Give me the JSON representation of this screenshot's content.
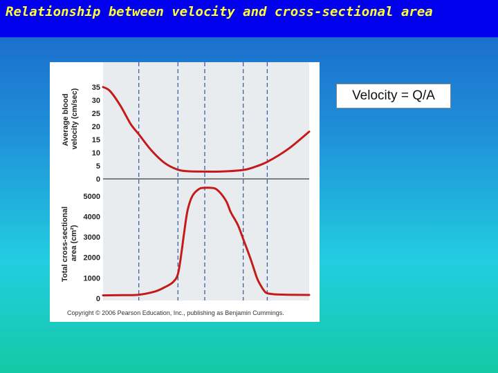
{
  "slide": {
    "title": "Relationship between velocity and cross-sectional area",
    "formula": "Velocity = Q/A"
  },
  "colors": {
    "title_bg": "#0000ee",
    "title_text": "#ffff33",
    "curve": "#c41a1a",
    "panel": "#e8ecee",
    "dashed": "#3f5f9f"
  },
  "chart_data": [
    {
      "type": "line",
      "ylabel": "Average blood velocity (cm/sec)",
      "yticks": [
        "35",
        "30",
        "25",
        "20",
        "15",
        "10",
        "5",
        "0"
      ],
      "ylim": [
        0,
        40
      ],
      "xlim": [
        0,
        300
      ],
      "dividers": [
        52,
        109,
        148,
        204,
        239
      ],
      "series": [
        {
          "name": "Average blood velocity",
          "x": [
            0,
            10,
            25,
            40,
            52,
            70,
            90,
            109,
            125,
            148,
            170,
            204,
            220,
            239,
            270,
            300
          ],
          "y": [
            35,
            33.5,
            28,
            21,
            17,
            11,
            6,
            3.5,
            2.9,
            2.8,
            2.8,
            3.4,
            4.5,
            6.5,
            11.5,
            18
          ]
        }
      ]
    },
    {
      "type": "line",
      "ylabel": "Total cross-sectional area (cm²)",
      "yticks": [
        "5000",
        "4000",
        "3000",
        "2000",
        "1000",
        "0"
      ],
      "ylim": [
        0,
        5600
      ],
      "xlim": [
        0,
        300
      ],
      "dividers": [
        52,
        109,
        148,
        204,
        239
      ],
      "series": [
        {
          "name": "Total cross-sectional area",
          "x": [
            0,
            30,
            52,
            75,
            90,
            102,
            109,
            114,
            118,
            123,
            130,
            140,
            148,
            156,
            164,
            172,
            180,
            186,
            196,
            204,
            215,
            224,
            230,
            235,
            239,
            250,
            270,
            300
          ],
          "y": [
            150,
            160,
            180,
            330,
            550,
            800,
            1200,
            2200,
            3200,
            4300,
            5000,
            5350,
            5400,
            5400,
            5350,
            5100,
            4700,
            4200,
            3600,
            2900,
            1900,
            1000,
            600,
            350,
            250,
            200,
            180,
            170
          ]
        }
      ]
    }
  ],
  "copyright": "Copyright © 2006 Pearson Education, Inc., publishing as Benjamin Cummings."
}
